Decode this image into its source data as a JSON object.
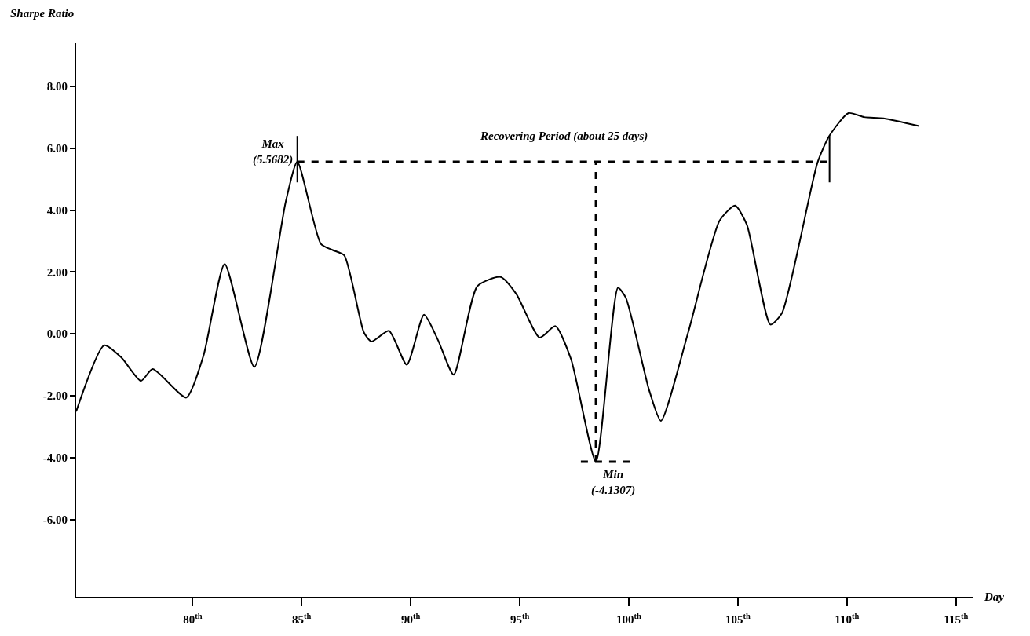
{
  "chart_data": {
    "type": "line",
    "xlabel": "Day",
    "ylabel": "Sharpe Ratio",
    "xlim": [
      74.66,
      115.8
    ],
    "ylim": [
      -8.5,
      9.4
    ],
    "xticks": [
      {
        "value": 80,
        "label": "80$^{th}$"
      },
      {
        "value": 85,
        "label": "85$^{th}$"
      },
      {
        "value": 90,
        "label": "90$^{th}$"
      },
      {
        "value": 95,
        "label": "95$^{th}$"
      },
      {
        "value": 100,
        "label": "100$^{th}$"
      },
      {
        "value": 105,
        "label": "105$^{th}$"
      },
      {
        "value": 110,
        "label": "110$^{th}$"
      },
      {
        "value": 115,
        "label": "115$^{th}$"
      }
    ],
    "yticks": [
      {
        "value": -6,
        "label": "-6.00"
      },
      {
        "value": -4,
        "label": "-4.00"
      },
      {
        "value": -2,
        "label": "-2.00"
      },
      {
        "value": 0,
        "label": "0.00"
      },
      {
        "value": 2,
        "label": "2.00"
      },
      {
        "value": 4,
        "label": "4.00"
      },
      {
        "value": 6,
        "label": "6.00"
      },
      {
        "value": 8,
        "label": "8.00"
      }
    ],
    "grid": false,
    "marker": "none",
    "series": [
      {
        "color": "#000000",
        "line_style": "solid",
        "x": [
          74.66,
          75.95,
          76.74,
          77.63,
          78.17,
          79.71,
          80.5,
          81.47,
          82.83,
          84.27,
          84.8,
          85.88,
          86.42,
          86.95,
          87.85,
          88.2,
          89.0,
          89.82,
          90.61,
          91.25,
          91.97,
          93.05,
          94.12,
          94.84,
          95.91,
          96.63,
          97.35,
          98.49,
          99.5,
          99.86,
          100.93,
          101.47,
          102.72,
          104.16,
          104.87,
          105.41,
          106.49,
          107.02,
          108.64,
          109.18,
          110.07,
          110.79,
          111.68,
          113.3
        ],
        "values": [
          -2.51,
          -0.37,
          -0.77,
          -1.52,
          -1.14,
          -2.06,
          -0.7,
          2.26,
          -1.07,
          4.28,
          5.5682,
          2.91,
          2.71,
          2.54,
          0.05,
          -0.25,
          0.1,
          -1.0,
          0.62,
          -0.2,
          -1.32,
          1.54,
          1.84,
          1.29,
          -0.12,
          0.25,
          -0.82,
          -4.1307,
          1.49,
          1.17,
          -1.82,
          -2.81,
          0.05,
          3.66,
          4.15,
          3.53,
          0.3,
          0.67,
          5.52,
          6.39,
          7.14,
          7.01,
          6.97,
          6.72
        ]
      },
      {
        "color": "#000000",
        "line_style": "dashed",
        "x": [
          84.8,
          109.2
        ],
        "values": [
          5.5682,
          5.5682
        ]
      },
      {
        "color": "#000000",
        "line_style": "dashed",
        "x": [
          98.49,
          98.49
        ],
        "values": [
          -4.1307,
          5.5682
        ]
      },
      {
        "color": "#000000",
        "line_style": "dashed",
        "x": [
          97.8,
          100.2
        ],
        "values": [
          -4.1307,
          -4.1307
        ]
      },
      {
        "color": "#000000",
        "line_style": "solid",
        "x": [
          84.8,
          84.8
        ],
        "values": [
          4.9,
          6.4
        ]
      },
      {
        "color": "#000000",
        "line_style": "solid",
        "x": [
          109.2,
          109.2
        ],
        "values": [
          4.9,
          6.4
        ]
      }
    ],
    "annotations": [
      {
        "text": "Max\n(5.5682)",
        "x": 84.8,
        "y": 5.5682
      },
      {
        "text": "Min\n(-4.1307)",
        "x": 98.49,
        "y": -4.1307
      },
      {
        "text": "Recovering Period (about 25 days)",
        "x": 97,
        "y": 5.5682
      }
    ]
  }
}
